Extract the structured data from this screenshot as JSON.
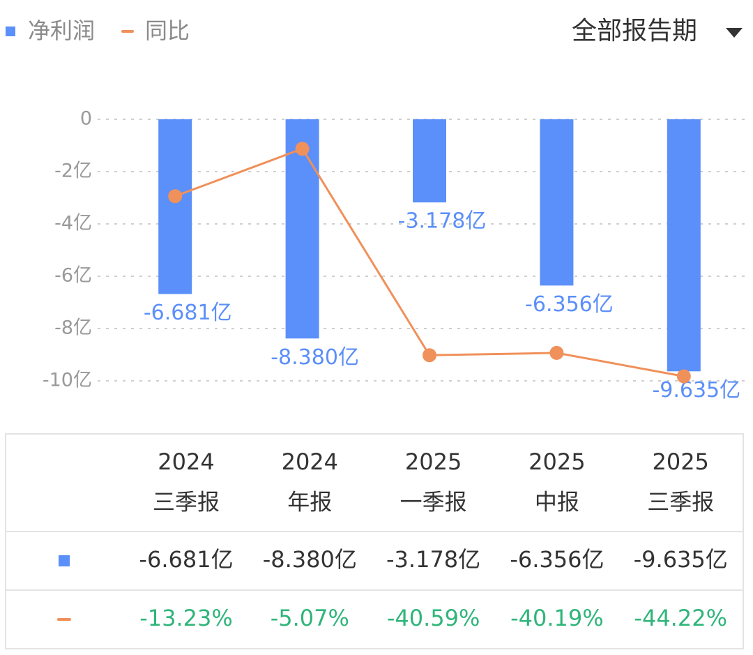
{
  "chart_data": {
    "type": "bar",
    "period_selector": "全部报告期",
    "categories": [
      "2024\n三季报",
      "2024\n年报",
      "2025\n一季报",
      "2025\n中报",
      "2025\n三季报"
    ],
    "series": [
      {
        "name": "净利润",
        "type": "bar",
        "color": "#5b8ff9",
        "values": [
          -6.681,
          -8.38,
          -3.178,
          -6.356,
          -9.635
        ],
        "value_labels": [
          "-6.681亿",
          "-8.380亿",
          "-3.178亿",
          "-6.356亿",
          "-9.635亿"
        ]
      },
      {
        "name": "同比",
        "type": "line",
        "axis": "y2",
        "color": "#f0905a",
        "values": [
          -13.23,
          -5.07,
          -40.59,
          -40.19,
          -44.22
        ],
        "value_labels": [
          "-13.23%",
          "-5.07%",
          "-40.59%",
          "-40.19%",
          "-44.22%"
        ]
      }
    ],
    "ylim": [
      -10,
      0
    ],
    "yticks": [
      0,
      {
        "value": -2,
        "label": "-2亿"
      },
      {
        "value": -4,
        "label": "-4亿"
      },
      {
        "value": -6,
        "label": "-6亿"
      },
      {
        "value": -8,
        "label": "-8亿"
      },
      {
        "value": -10,
        "label": "-10亿"
      }
    ],
    "y2lim": [
      -45,
      0
    ],
    "grid": true
  }
}
